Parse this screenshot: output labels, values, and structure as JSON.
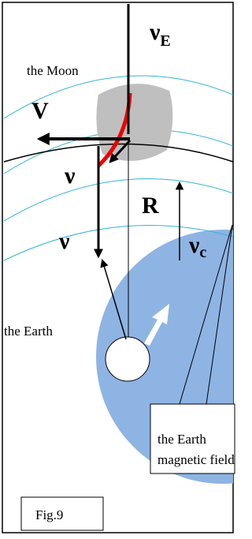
{
  "labels": {
    "v_e": {
      "symbol": "ν",
      "sub": "E"
    },
    "moon": "the Moon",
    "big_v": "V",
    "v_small": "ν",
    "r": "R",
    "v_down": "ν",
    "v_c": {
      "symbol": "ν",
      "sub": "c"
    },
    "earth": "the Earth"
  },
  "callout": {
    "line1": "the Earth",
    "line2": "magnetic field"
  },
  "caption": "Fig.9"
}
